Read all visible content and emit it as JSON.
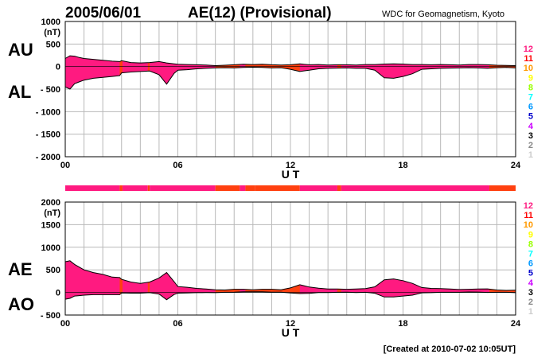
{
  "header": {
    "date": "2005/06/01",
    "title": "AE(12) (Provisional)",
    "source": "WDC for Geomagnetism, Kyoto"
  },
  "footer": {
    "created": "[Created at 2010-07-02 10:05UT]"
  },
  "colors": {
    "fill_main": "#ff1a80",
    "fill_orange": "#ff4010",
    "grid": "#b8b8b8",
    "outline": "#000000"
  },
  "legend": [
    {
      "label": "12",
      "color": "#ff1a80"
    },
    {
      "label": "11",
      "color": "#ff0000"
    },
    {
      "label": "10",
      "color": "#ff9900"
    },
    {
      "label": "9",
      "color": "#ffff00"
    },
    {
      "label": "8",
      "color": "#99ff00"
    },
    {
      "label": "7",
      "color": "#00ffff"
    },
    {
      "label": "6",
      "color": "#0099ff"
    },
    {
      "label": "5",
      "color": "#0000cc"
    },
    {
      "label": "4",
      "color": "#cc00ff"
    },
    {
      "label": "3",
      "color": "#000000"
    },
    {
      "label": "2",
      "color": "#888888"
    },
    {
      "label": "1",
      "color": "#cccccc"
    }
  ],
  "chart_data": [
    {
      "type": "area",
      "panel": "AU/AL",
      "left_label_top": "AU",
      "left_label_bottom": "AL",
      "unit": "(nT)",
      "xlabel": "U T",
      "xlim": [
        0,
        24
      ],
      "ylim": [
        -2000,
        1000
      ],
      "yticks": [
        "1000",
        "500",
        "0",
        "- 500",
        "- 1000",
        "- 1500",
        "- 2000"
      ],
      "xticks": [
        "00",
        "06",
        "12",
        "18",
        "24"
      ],
      "x": [
        0,
        0.25,
        0.5,
        0.75,
        1,
        1.5,
        2,
        2.5,
        2.9,
        3,
        3.5,
        4,
        4.5,
        5,
        5.4,
        5.8,
        6,
        6.5,
        7,
        7.5,
        8,
        8.5,
        9,
        9.5,
        10,
        10.5,
        11,
        11.5,
        12,
        12.5,
        13,
        13.5,
        14,
        14.5,
        15,
        15.5,
        16,
        16.5,
        17,
        17.5,
        18,
        18.5,
        19,
        19.5,
        20,
        20.5,
        21,
        21.5,
        22,
        22.5,
        23,
        23.5,
        24
      ],
      "series": [
        {
          "name": "AU",
          "values": [
            180,
            240,
            230,
            200,
            180,
            160,
            140,
            120,
            110,
            130,
            90,
            80,
            90,
            110,
            80,
            60,
            50,
            45,
            40,
            35,
            20,
            30,
            40,
            50,
            45,
            50,
            40,
            35,
            40,
            60,
            40,
            45,
            35,
            40,
            40,
            35,
            45,
            45,
            55,
            60,
            55,
            45,
            45,
            40,
            45,
            40,
            35,
            45,
            45,
            40,
            30,
            25,
            20
          ]
        },
        {
          "name": "AL",
          "values": [
            -450,
            -500,
            -380,
            -340,
            -300,
            -260,
            -240,
            -220,
            -200,
            -140,
            -120,
            -110,
            -100,
            -180,
            -390,
            -150,
            -80,
            -70,
            -50,
            -40,
            -30,
            -25,
            -30,
            -20,
            -15,
            -20,
            -30,
            -25,
            -60,
            -110,
            -80,
            -50,
            -40,
            -35,
            -30,
            -40,
            -40,
            -80,
            -250,
            -260,
            -220,
            -160,
            -60,
            -50,
            -40,
            -35,
            -30,
            -25,
            -30,
            -40,
            -25,
            -20,
            -30
          ]
        }
      ]
    },
    {
      "type": "area",
      "panel": "AE/AO",
      "left_label_top": "AE",
      "left_label_bottom": "AO",
      "unit": "(nT)",
      "xlabel": "U T",
      "xlim": [
        0,
        24
      ],
      "ylim": [
        -500,
        2000
      ],
      "yticks": [
        "2000",
        "1500",
        "1000",
        "500",
        "0",
        "- 500"
      ],
      "xticks": [
        "00",
        "06",
        "12",
        "18",
        "24"
      ],
      "x": [
        0,
        0.25,
        0.5,
        0.75,
        1,
        1.5,
        2,
        2.5,
        2.9,
        3,
        3.5,
        4,
        4.5,
        5,
        5.4,
        5.8,
        6,
        6.5,
        7,
        7.5,
        8,
        8.5,
        9,
        9.5,
        10,
        10.5,
        11,
        11.5,
        12,
        12.5,
        13,
        13.5,
        14,
        14.5,
        15,
        15.5,
        16,
        16.5,
        17,
        17.5,
        18,
        18.5,
        19,
        19.5,
        20,
        20.5,
        21,
        21.5,
        22,
        22.5,
        23,
        23.5,
        24
      ],
      "series": [
        {
          "name": "AE",
          "values": [
            680,
            700,
            620,
            560,
            500,
            440,
            400,
            340,
            330,
            290,
            230,
            200,
            230,
            320,
            440,
            240,
            130,
            115,
            90,
            75,
            60,
            55,
            70,
            70,
            60,
            70,
            70,
            60,
            100,
            170,
            120,
            95,
            75,
            75,
            70,
            75,
            85,
            125,
            280,
            300,
            260,
            200,
            110,
            90,
            85,
            75,
            65,
            70,
            75,
            80,
            55,
            45,
            50
          ]
        },
        {
          "name": "AO",
          "values": [
            -150,
            -130,
            -80,
            -70,
            -60,
            -50,
            -50,
            -50,
            -50,
            -10,
            -15,
            -15,
            -5,
            -35,
            -160,
            -45,
            -15,
            -12,
            -5,
            -3,
            -5,
            3,
            5,
            15,
            15,
            15,
            5,
            5,
            -10,
            -25,
            -20,
            -3,
            -3,
            3,
            5,
            -3,
            3,
            -18,
            -100,
            -100,
            -80,
            -60,
            -8,
            -5,
            3,
            3,
            3,
            10,
            8,
            0,
            3,
            3,
            -5
          ]
        }
      ]
    }
  ],
  "strip_segments": [
    {
      "from": 0,
      "to": 2.9,
      "color": "#ff1a80"
    },
    {
      "from": 2.9,
      "to": 3.05,
      "color": "#ff4010"
    },
    {
      "from": 3.05,
      "to": 4.4,
      "color": "#ff1a80"
    },
    {
      "from": 4.4,
      "to": 4.5,
      "color": "#ff4010"
    },
    {
      "from": 4.5,
      "to": 8.0,
      "color": "#ff1a80"
    },
    {
      "from": 8.0,
      "to": 9.3,
      "color": "#ff4010"
    },
    {
      "from": 9.3,
      "to": 9.6,
      "color": "#ff1a80"
    },
    {
      "from": 9.6,
      "to": 10.1,
      "color": "#ff4010"
    },
    {
      "from": 10.1,
      "to": 12.5,
      "color": "#ff4010"
    },
    {
      "from": 12.5,
      "to": 14.5,
      "color": "#ff1a80"
    },
    {
      "from": 14.5,
      "to": 14.7,
      "color": "#ff4010"
    },
    {
      "from": 14.7,
      "to": 22.6,
      "color": "#ff1a80"
    },
    {
      "from": 22.6,
      "to": 24,
      "color": "#ff4010"
    }
  ]
}
